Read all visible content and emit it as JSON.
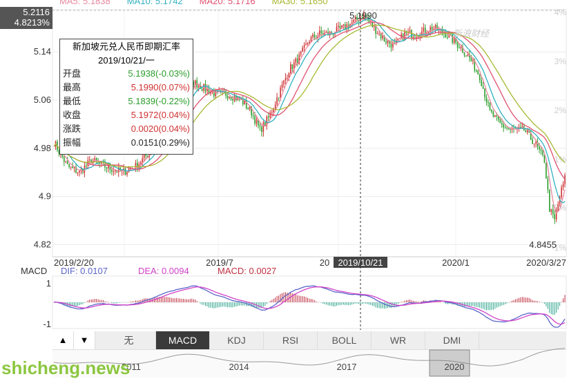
{
  "header": {
    "cursor_price": "5.2116",
    "cursor_pct": "4.8213%",
    "ma_legend": [
      {
        "label": "MA5: 5.1838",
        "color": "#e8879f"
      },
      {
        "label": "MA10: 5.1742",
        "color": "#30b0c0"
      },
      {
        "label": "MA20: 5.1716",
        "color": "#e05070"
      },
      {
        "label": "MA30: 5.1650",
        "color": "#a8b830"
      }
    ]
  },
  "brand": "新浪财经",
  "tooltip": {
    "title": "新加坡元兑人民币即期汇率",
    "date": "2019/10/21/一",
    "rows": [
      {
        "k": "开盘",
        "v": "5.1938(-0.03%)",
        "color": "#2a9d2a"
      },
      {
        "k": "最高",
        "v": "5.1990(0.07%)",
        "color": "#d03030"
      },
      {
        "k": "最低",
        "v": "5.1839(-0.22%)",
        "color": "#2a9d2a"
      },
      {
        "k": "收盘",
        "v": "5.1972(0.04%)",
        "color": "#d03030"
      },
      {
        "k": "涨跌",
        "v": "0.0020(0.04%)",
        "color": "#d03030"
      },
      {
        "k": "振幅",
        "v": "0.0151(0.29%)",
        "color": "#222222"
      }
    ]
  },
  "chart_data": {
    "type": "line",
    "price_ticks": [
      "5.14",
      "5.06",
      "4.98",
      "4.9",
      "4.82"
    ],
    "pct_ticks": [
      "4%",
      "3%",
      "2%",
      "1%",
      "0%",
      "-1%"
    ],
    "pct_top_partial": "4%",
    "x_labels": [
      "2019/2/20",
      "2019/7",
      "20",
      "2020/1",
      "2020/3/27"
    ],
    "cursor_x_label": "2019/10/21",
    "high_label": "5.1990",
    "low_label": "4.8455",
    "ylim": [
      4.8,
      5.21
    ],
    "close_path": [
      [
        0,
        4.99
      ],
      [
        8,
        4.95
      ],
      [
        15,
        4.94
      ],
      [
        22,
        4.96
      ],
      [
        30,
        4.95
      ],
      [
        40,
        4.94
      ],
      [
        48,
        4.95
      ],
      [
        55,
        4.97
      ],
      [
        62,
        5.0
      ],
      [
        70,
        5.03
      ],
      [
        76,
        5.06
      ],
      [
        82,
        5.09
      ],
      [
        88,
        5.08
      ],
      [
        95,
        5.07
      ],
      [
        102,
        5.07
      ],
      [
        110,
        5.06
      ],
      [
        116,
        5.04
      ],
      [
        121,
        5.01
      ],
      [
        126,
        5.03
      ],
      [
        132,
        5.07
      ],
      [
        138,
        5.11
      ],
      [
        144,
        5.13
      ],
      [
        150,
        5.16
      ],
      [
        156,
        5.17
      ],
      [
        162,
        5.17
      ],
      [
        170,
        5.18
      ],
      [
        176,
        5.19
      ],
      [
        182,
        5.2
      ],
      [
        188,
        5.18
      ],
      [
        194,
        5.16
      ],
      [
        200,
        5.15
      ],
      [
        206,
        5.17
      ],
      [
        214,
        5.17
      ],
      [
        222,
        5.18
      ],
      [
        230,
        5.17
      ],
      [
        238,
        5.15
      ],
      [
        244,
        5.13
      ],
      [
        250,
        5.1
      ],
      [
        256,
        5.04
      ],
      [
        262,
        5.02
      ],
      [
        268,
        5.01
      ],
      [
        276,
        5.01
      ],
      [
        282,
        4.99
      ],
      [
        288,
        4.96
      ],
      [
        291,
        4.88
      ],
      [
        294,
        4.86
      ],
      [
        297,
        4.9
      ],
      [
        300,
        4.93
      ]
    ],
    "macd": {
      "legend_title": "MACD",
      "dif": "DIF: 0.0107",
      "dea": "DEA: 0.0094",
      "macd": "MACD: 0.0027",
      "ticks": [
        "1",
        "-1"
      ]
    }
  },
  "tabs": {
    "up": "▲",
    "down": "▼",
    "items": [
      "无",
      "MACD",
      "KDJ",
      "RSI",
      "BOLL",
      "WR",
      "DMI"
    ],
    "active": "MACD"
  },
  "navigator": {
    "labels": [
      "2011",
      "2014",
      "2017",
      "2020"
    ]
  },
  "watermark": "shicheng.news"
}
